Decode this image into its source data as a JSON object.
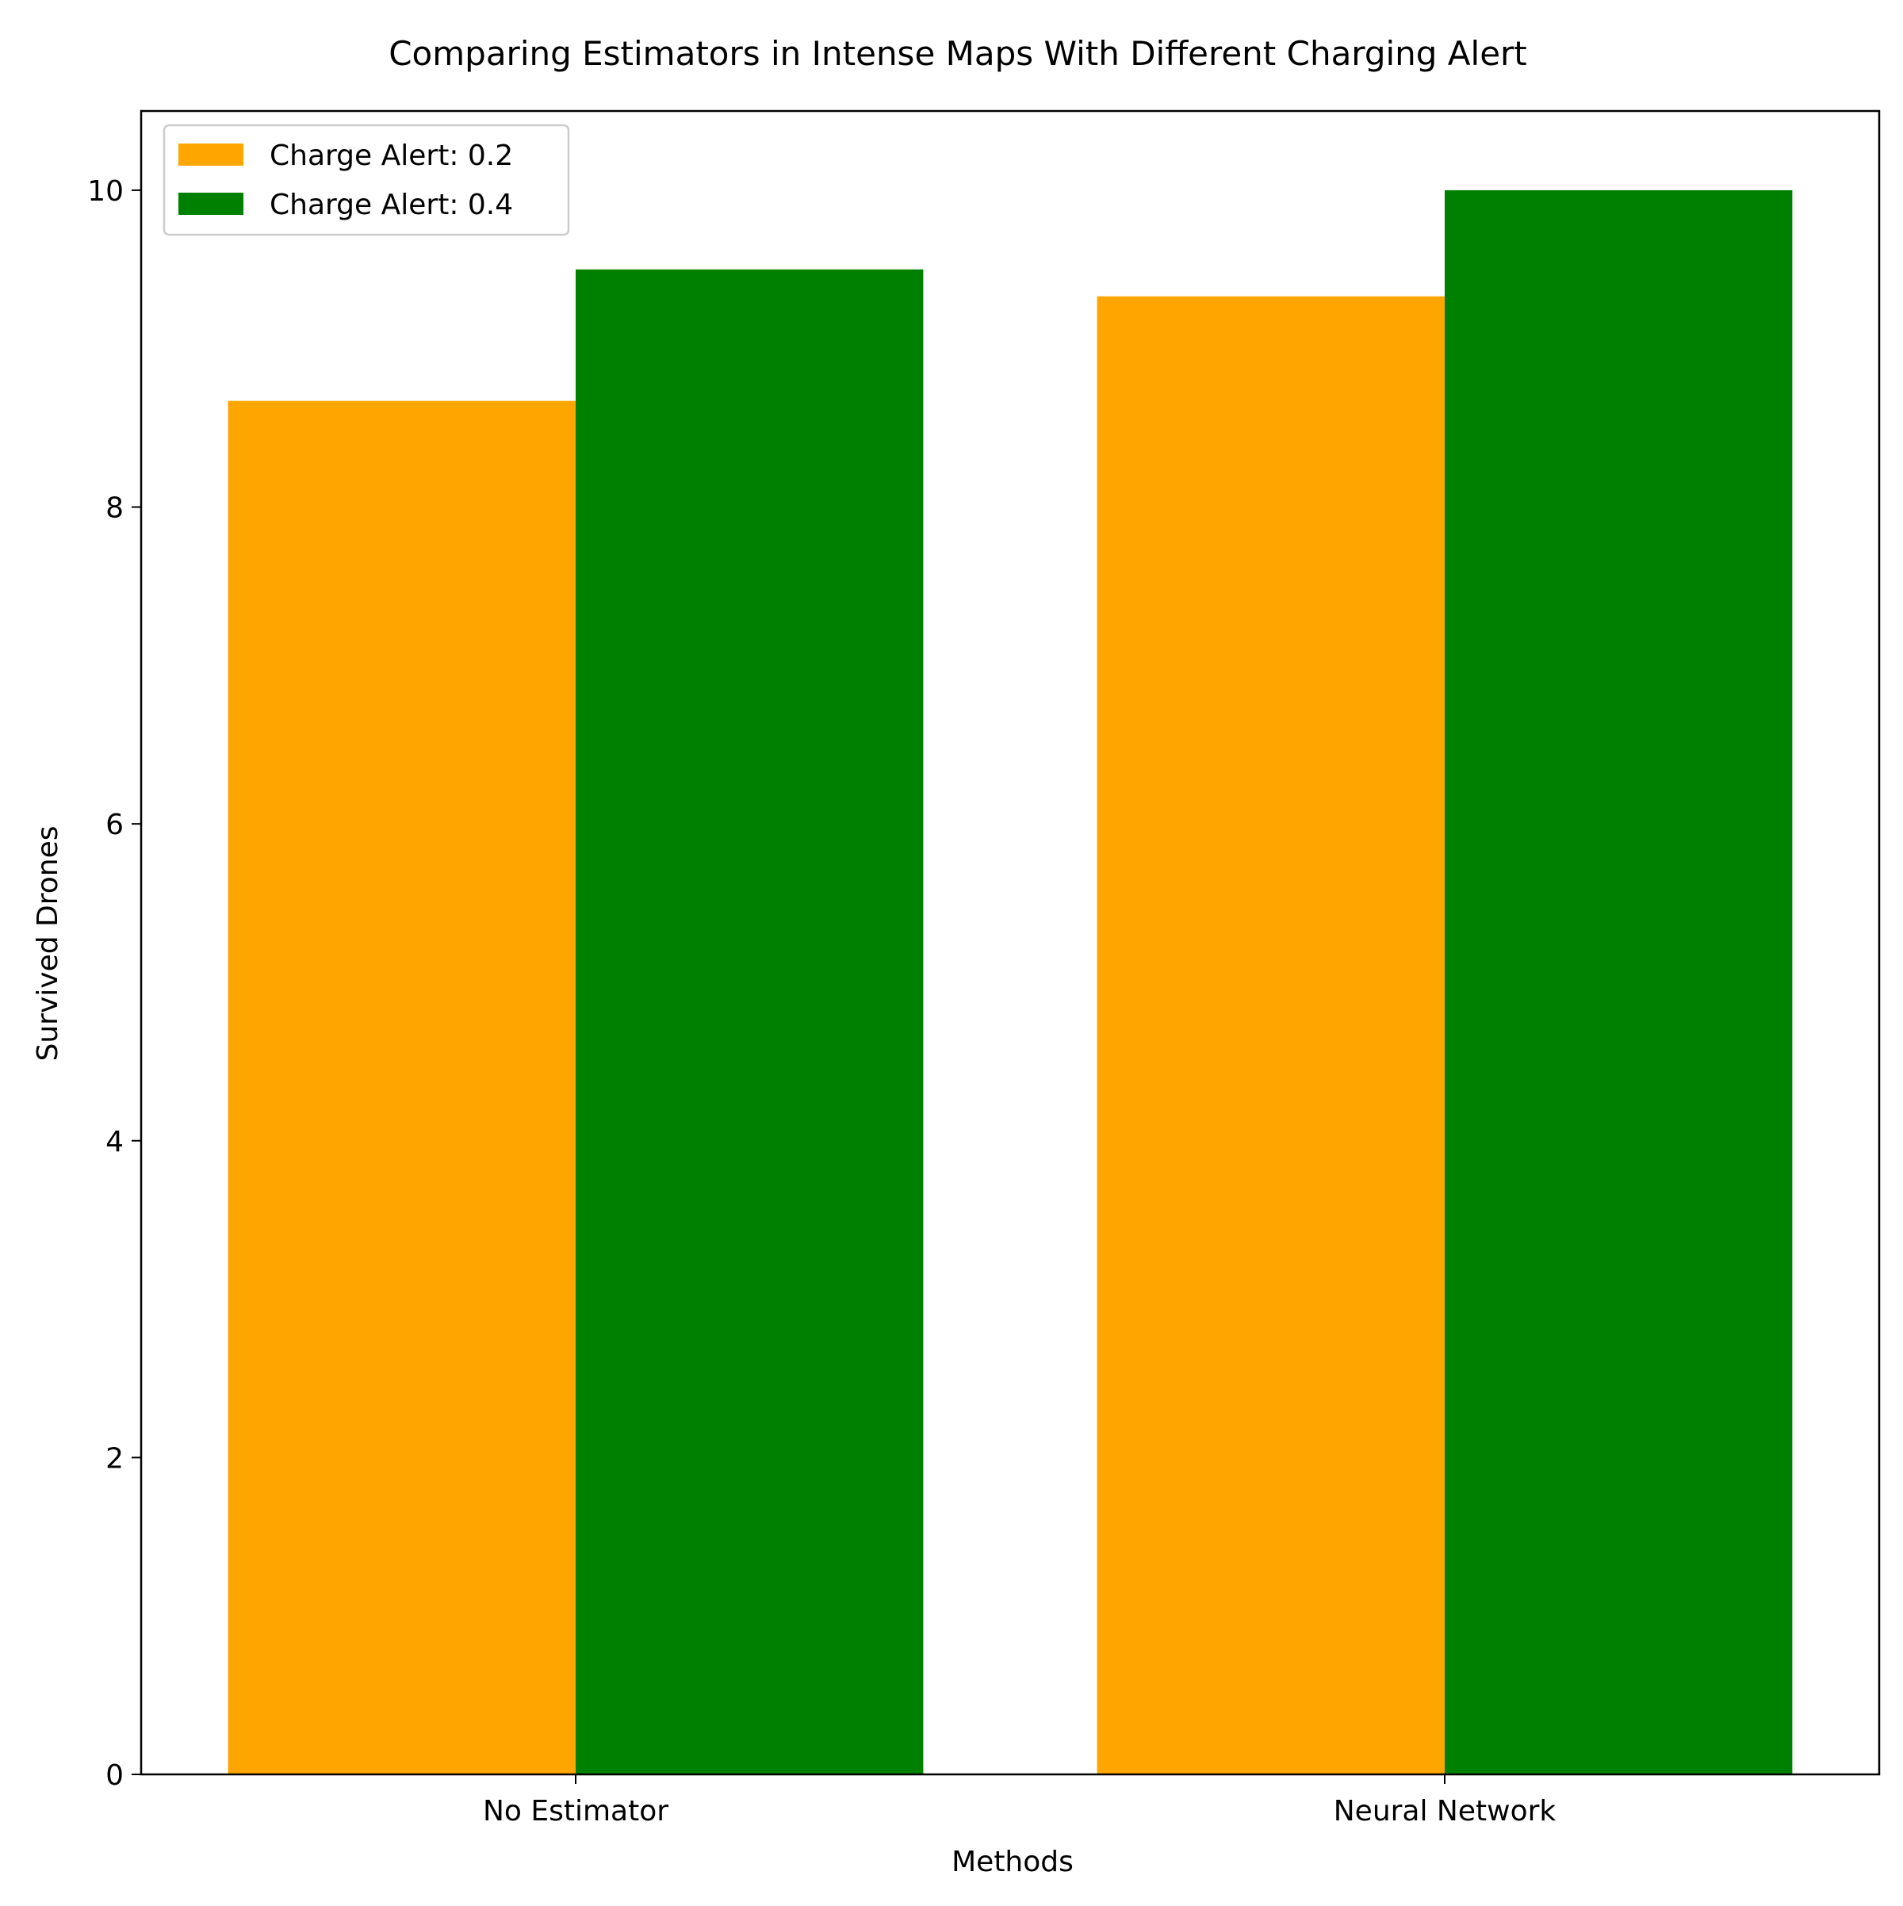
{
  "chart_data": {
    "type": "bar",
    "title": "Comparing Estimators in Intense Maps With Different Charging Alert",
    "xlabel": "Methods",
    "ylabel": "Survived Drones",
    "categories": [
      "No Estimator",
      "Neural Network"
    ],
    "series": [
      {
        "name": "Charge Alert: 0.2",
        "color": "#FFA500",
        "values": [
          8.67,
          9.33
        ]
      },
      {
        "name": "Charge Alert: 0.4",
        "color": "#008000",
        "values": [
          9.5,
          10.0
        ]
      }
    ],
    "ylim": [
      0,
      10.5
    ],
    "yticks": [
      0,
      2,
      4,
      6,
      8,
      10
    ],
    "ytick_labels": [
      "0",
      "2",
      "4",
      "6",
      "8",
      "10"
    ],
    "grid": false,
    "legend_position": "upper-left"
  }
}
